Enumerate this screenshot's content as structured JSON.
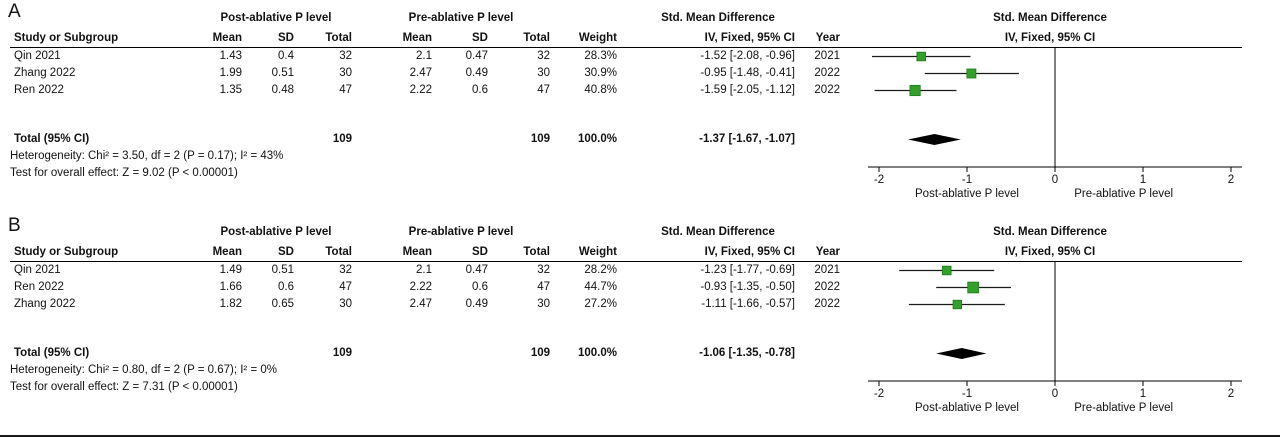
{
  "figure": {
    "background": "#ffffff",
    "colors": {
      "marker": "#33a02c",
      "marker_border": "#1d7a1d",
      "ci_line": "#1a1a1a",
      "diamond": "#000000",
      "axis": "#000000",
      "text": "#111111"
    }
  },
  "chart_data": [
    {
      "type": "forest",
      "panel_label": "A",
      "group_headers": {
        "group1": "Post-ablative P level",
        "group2": "Pre-ablative P level",
        "smd": "Std. Mean Difference"
      },
      "col_headers": {
        "study": "Study or Subgroup",
        "mean": "Mean",
        "sd": "SD",
        "total": "Total",
        "weight": "Weight",
        "ci": "IV, Fixed, 95% CI",
        "year": "Year"
      },
      "studies": [
        {
          "name": "Qin 2021",
          "mean1": "1.43",
          "sd1": "0.4",
          "total1": "32",
          "mean2": "2.1",
          "sd2": "0.47",
          "total2": "32",
          "weight": "28.3%",
          "weight_pct": 28.3,
          "ci_text": "-1.52 [-2.08, -0.96]",
          "year": "2021",
          "est": -1.52,
          "lo": -2.08,
          "hi": -0.96
        },
        {
          "name": "Zhang 2022",
          "mean1": "1.99",
          "sd1": "0.51",
          "total1": "30",
          "mean2": "2.47",
          "sd2": "0.49",
          "total2": "30",
          "weight": "30.9%",
          "weight_pct": 30.9,
          "ci_text": "-0.95 [-1.48, -0.41]",
          "year": "2022",
          "est": -0.95,
          "lo": -1.48,
          "hi": -0.41
        },
        {
          "name": "Ren 2022",
          "mean1": "1.35",
          "sd1": "0.48",
          "total1": "47",
          "mean2": "2.22",
          "sd2": "0.6",
          "total2": "47",
          "weight": "40.8%",
          "weight_pct": 40.8,
          "ci_text": "-1.59 [-2.05, -1.12]",
          "year": "2022",
          "est": -1.59,
          "lo": -2.05,
          "hi": -1.12
        }
      ],
      "total": {
        "label": "Total (95% CI)",
        "total1": "109",
        "total2": "109",
        "weight": "100.0%",
        "ci_text": "-1.37 [-1.67, -1.07]",
        "est": -1.37,
        "lo": -1.67,
        "hi": -1.07
      },
      "heterogeneity": "Heterogeneity: Chi² = 3.50, df = 2 (P = 0.17); I² = 43%",
      "overall": "Test for overall effect: Z = 9.02 (P < 0.00001)",
      "axis": {
        "min": -2.3,
        "max": 2.3,
        "ticks": [
          {
            "value": -2,
            "label": "-2"
          },
          {
            "value": -1,
            "label": "-1"
          },
          {
            "value": 0,
            "label": "0"
          },
          {
            "value": 1,
            "label": "1"
          },
          {
            "value": 2,
            "label": "2"
          }
        ],
        "left_label": "Post-ablative P level",
        "right_label": "Pre-ablative P level"
      }
    },
    {
      "type": "forest",
      "panel_label": "B",
      "group_headers": {
        "group1": "Post-ablative P level",
        "group2": "Pre-ablative P level",
        "smd": "Std. Mean Difference"
      },
      "col_headers": {
        "study": "Study or Subgroup",
        "mean": "Mean",
        "sd": "SD",
        "total": "Total",
        "weight": "Weight",
        "ci": "IV, Fixed, 95% CI",
        "year": "Year"
      },
      "studies": [
        {
          "name": "Qin 2021",
          "mean1": "1.49",
          "sd1": "0.51",
          "total1": "32",
          "mean2": "2.1",
          "sd2": "0.47",
          "total2": "32",
          "weight": "28.2%",
          "weight_pct": 28.2,
          "ci_text": "-1.23 [-1.77, -0.69]",
          "year": "2021",
          "est": -1.23,
          "lo": -1.77,
          "hi": -0.69
        },
        {
          "name": "Ren 2022",
          "mean1": "1.66",
          "sd1": "0.6",
          "total1": "47",
          "mean2": "2.22",
          "sd2": "0.6",
          "total2": "47",
          "weight": "44.7%",
          "weight_pct": 44.7,
          "ci_text": "-0.93 [-1.35, -0.50]",
          "year": "2022",
          "est": -0.93,
          "lo": -1.35,
          "hi": -0.5
        },
        {
          "name": "Zhang 2022",
          "mean1": "1.82",
          "sd1": "0.65",
          "total1": "30",
          "mean2": "2.47",
          "sd2": "0.49",
          "total2": "30",
          "weight": "27.2%",
          "weight_pct": 27.2,
          "ci_text": "-1.11 [-1.66, -0.57]",
          "year": "2022",
          "est": -1.11,
          "lo": -1.66,
          "hi": -0.57
        }
      ],
      "total": {
        "label": "Total (95% CI)",
        "total1": "109",
        "total2": "109",
        "weight": "100.0%",
        "ci_text": "-1.06 [-1.35, -0.78]",
        "est": -1.06,
        "lo": -1.35,
        "hi": -0.78
      },
      "heterogeneity": "Heterogeneity: Chi² = 0.80, df = 2 (P = 0.67); I² = 0%",
      "overall": "Test for overall effect: Z = 7.31 (P < 0.00001)",
      "axis": {
        "min": -2.3,
        "max": 2.3,
        "ticks": [
          {
            "value": -2,
            "label": "-2"
          },
          {
            "value": -1,
            "label": "-1"
          },
          {
            "value": 0,
            "label": "0"
          },
          {
            "value": 1,
            "label": "1"
          },
          {
            "value": 2,
            "label": "2"
          }
        ],
        "left_label": "Post-ablative P level",
        "right_label": "Pre-ablative P level"
      }
    }
  ]
}
